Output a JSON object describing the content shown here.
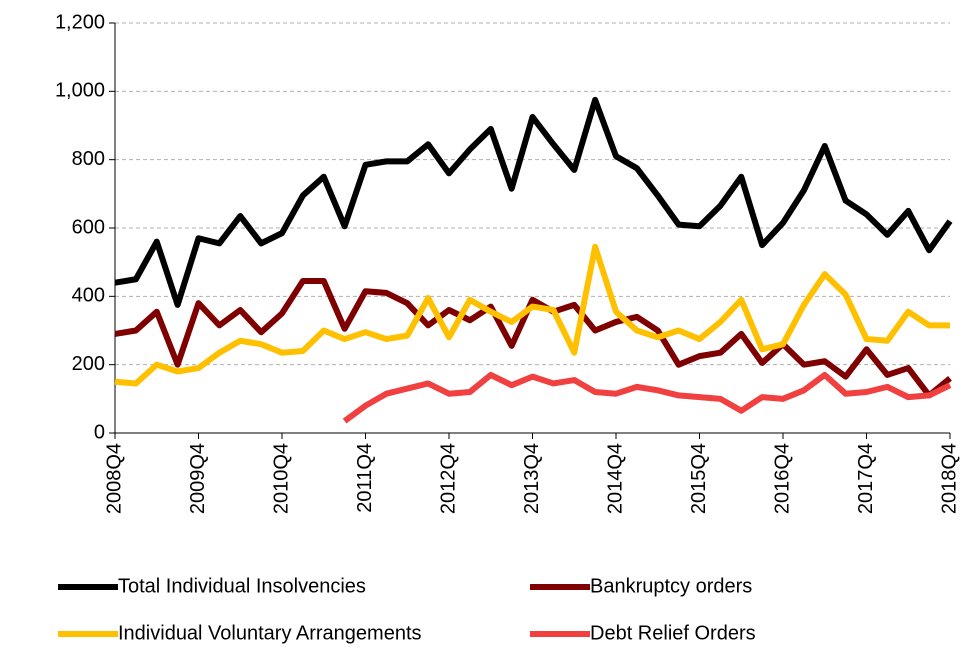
{
  "chart_data": {
    "type": "line",
    "categories": [
      "2008Q4",
      null,
      null,
      null,
      "2009Q4",
      null,
      null,
      null,
      "2010Q4",
      null,
      null,
      null,
      "2011Q4",
      null,
      null,
      null,
      "2012Q4",
      null,
      null,
      null,
      "2013Q4",
      null,
      null,
      null,
      "2014Q4",
      null,
      null,
      null,
      "2015Q4",
      null,
      null,
      null,
      "2016Q4",
      null,
      null,
      null,
      "2017Q4",
      null,
      null,
      null,
      "2018Q4"
    ],
    "series": [
      {
        "name": "Total Individual Insolvencies",
        "color": "#000000",
        "values": [
          440,
          450,
          560,
          375,
          570,
          555,
          635,
          555,
          585,
          695,
          750,
          605,
          785,
          795,
          795,
          845,
          760,
          830,
          890,
          715,
          925,
          845,
          770,
          975,
          810,
          775,
          695,
          610,
          605,
          665,
          750,
          550,
          615,
          710,
          840,
          680,
          640,
          580,
          650,
          535,
          620
        ]
      },
      {
        "name": "Bankruptcy orders",
        "color": "#7f0000",
        "values": [
          290,
          300,
          355,
          200,
          380,
          315,
          360,
          295,
          350,
          445,
          445,
          305,
          415,
          410,
          380,
          315,
          360,
          330,
          370,
          255,
          390,
          355,
          375,
          300,
          325,
          340,
          300,
          200,
          225,
          235,
          290,
          205,
          260,
          200,
          210,
          165,
          245,
          170,
          190,
          110,
          160
        ]
      },
      {
        "name": "Individual Voluntary Arrangements",
        "color": "#ffc000",
        "values": [
          150,
          145,
          200,
          180,
          190,
          235,
          270,
          260,
          235,
          240,
          300,
          275,
          295,
          275,
          285,
          395,
          280,
          390,
          355,
          325,
          370,
          360,
          235,
          545,
          355,
          300,
          280,
          300,
          275,
          325,
          390,
          245,
          260,
          375,
          465,
          405,
          275,
          270,
          355,
          315,
          315
        ]
      },
      {
        "name": "Debt Relief Orders",
        "color": "#f04040",
        "values": [
          null,
          null,
          null,
          null,
          null,
          null,
          null,
          null,
          null,
          null,
          null,
          35,
          80,
          115,
          130,
          145,
          115,
          120,
          170,
          140,
          165,
          145,
          155,
          120,
          115,
          135,
          125,
          110,
          105,
          100,
          65,
          105,
          100,
          125,
          170,
          115,
          120,
          135,
          105,
          110,
          140
        ]
      }
    ],
    "ylim": [
      0,
      1200
    ],
    "yticks": [
      0,
      200,
      400,
      600,
      800,
      {
        "value": 1000,
        "label": "1,000"
      },
      {
        "value": 1200,
        "label": "1,200"
      }
    ],
    "grid": true
  }
}
